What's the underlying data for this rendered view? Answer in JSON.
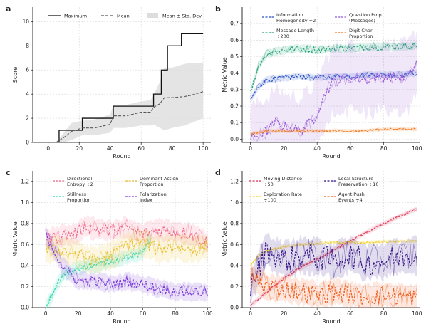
{
  "chart_data": [
    {
      "panel_label": "a",
      "type": "line",
      "xlabel": "Round",
      "ylabel": "Score",
      "xlim": [
        -10,
        105
      ],
      "ylim": [
        0,
        11.2
      ],
      "xticks": [
        0,
        20,
        40,
        60,
        80,
        100
      ],
      "yticks": [
        0,
        2,
        4,
        6,
        8,
        10
      ],
      "legend_position": "top",
      "series": [
        {
          "name": "Maximum",
          "style": "solid",
          "color": "#111111",
          "x": [
            5,
            7,
            7,
            22,
            22,
            42,
            42,
            68,
            68,
            73,
            73,
            77,
            77,
            86,
            86,
            100
          ],
          "y": [
            0,
            0,
            1,
            1,
            2,
            2,
            3,
            3,
            4,
            4,
            6,
            6,
            8,
            8,
            9,
            9
          ]
        },
        {
          "name": "Mean",
          "style": "dashed",
          "color": "#555555",
          "x": [
            5,
            10,
            15,
            22,
            30,
            40,
            42,
            50,
            60,
            66,
            68,
            72,
            75,
            80,
            88,
            92,
            100
          ],
          "y": [
            0,
            0.4,
            0.9,
            1.2,
            1.2,
            1.5,
            2.2,
            2.2,
            2.5,
            2.5,
            2.9,
            3.2,
            3.7,
            3.7,
            3.8,
            3.9,
            4.2
          ]
        },
        {
          "name": "Mean ± Std. Dev.",
          "style": "band",
          "color": "#dddddd",
          "x": [
            5,
            10,
            15,
            22,
            30,
            40,
            42,
            50,
            60,
            66,
            68,
            72,
            75,
            80,
            88,
            92,
            100
          ],
          "lower": [
            0,
            0,
            0.2,
            0.6,
            0.6,
            0.8,
            1.2,
            1.2,
            1.4,
            1.4,
            1.5,
            1.2,
            1.0,
            1.2,
            1.4,
            1.6,
            2.0
          ],
          "upper": [
            0,
            0.8,
            1.6,
            1.8,
            1.9,
            2.3,
            3.1,
            3.1,
            3.4,
            3.5,
            3.9,
            5.0,
            6.2,
            6.2,
            6.5,
            6.6,
            6.6
          ]
        }
      ]
    },
    {
      "panel_label": "b",
      "type": "line",
      "xlabel": "Round",
      "ylabel": "Metric Value",
      "xlim": [
        -5,
        102
      ],
      "ylim": [
        -0.02,
        0.8
      ],
      "xticks": [
        0,
        20,
        40,
        60,
        80,
        100
      ],
      "yticks": [
        0.0,
        0.1,
        0.2,
        0.3,
        0.4,
        0.5,
        0.6,
        0.7
      ],
      "legend_position": "top",
      "series": [
        {
          "name": "Information Homogeneity ÷2",
          "color": "#2550c8",
          "x": [
            0,
            5,
            10,
            20,
            30,
            40,
            50,
            60,
            70,
            80,
            90,
            100
          ],
          "y": [
            0.24,
            0.32,
            0.36,
            0.37,
            0.38,
            0.37,
            0.38,
            0.38,
            0.39,
            0.39,
            0.39,
            0.4
          ]
        },
        {
          "name": "Message Length ÷200",
          "color": "#2aa67a",
          "x": [
            0,
            5,
            10,
            20,
            30,
            40,
            50,
            60,
            70,
            80,
            90,
            100
          ],
          "y": [
            0.28,
            0.45,
            0.52,
            0.54,
            0.55,
            0.54,
            0.55,
            0.55,
            0.56,
            0.56,
            0.56,
            0.57
          ]
        },
        {
          "name": "Question Prop. (Messages)",
          "color": "#9a5cd8",
          "x": [
            0,
            10,
            15,
            20,
            30,
            38,
            45,
            50,
            60,
            70,
            80,
            90,
            95,
            100
          ],
          "y": [
            0.0,
            0.05,
            0.1,
            0.08,
            0.05,
            0.12,
            0.28,
            0.35,
            0.37,
            0.36,
            0.38,
            0.37,
            0.38,
            0.47
          ]
        },
        {
          "name": "Digit Char Proportion",
          "color": "#f07a20",
          "x": [
            0,
            10,
            20,
            30,
            40,
            50,
            60,
            70,
            80,
            90,
            100
          ],
          "y": [
            0.03,
            0.05,
            0.05,
            0.05,
            0.05,
            0.05,
            0.05,
            0.05,
            0.06,
            0.06,
            0.06
          ]
        }
      ]
    },
    {
      "panel_label": "c",
      "type": "line",
      "xlabel": "Round",
      "ylabel": "Metric Value",
      "xlim": [
        -8,
        102
      ],
      "ylim": [
        0,
        1.3
      ],
      "xticks": [
        0,
        20,
        40,
        60,
        80,
        100
      ],
      "yticks": [
        0.0,
        0.2,
        0.4,
        0.6,
        0.8,
        1.0,
        1.2
      ],
      "legend_position": "top",
      "series": [
        {
          "name": "Directional Entropy ÷2",
          "color": "#f06a8a",
          "x": [
            0,
            10,
            20,
            25,
            30,
            40,
            50,
            60,
            70,
            80,
            90,
            100
          ],
          "y": [
            0.65,
            0.68,
            0.72,
            0.78,
            0.75,
            0.73,
            0.76,
            0.7,
            0.74,
            0.72,
            0.7,
            0.62
          ]
        },
        {
          "name": "Stillness Proportion",
          "color": "#30d8b0",
          "x": [
            0,
            4,
            8,
            12,
            16,
            20,
            30,
            40,
            50,
            60,
            62,
            65
          ],
          "y": [
            0.0,
            0.12,
            0.25,
            0.32,
            0.35,
            0.38,
            0.4,
            0.44,
            0.48,
            0.52,
            0.6,
            0.65
          ]
        },
        {
          "name": "Dominant Action Proportion",
          "color": "#e8c030",
          "x": [
            0,
            10,
            20,
            30,
            40,
            50,
            60,
            70,
            80,
            90,
            100
          ],
          "y": [
            0.55,
            0.55,
            0.5,
            0.45,
            0.5,
            0.6,
            0.62,
            0.55,
            0.58,
            0.55,
            0.58
          ]
        },
        {
          "name": "Polarization Index",
          "color": "#7a3ad8",
          "x": [
            0,
            10,
            20,
            30,
            40,
            50,
            60,
            70,
            80,
            90,
            100
          ],
          "y": [
            0.7,
            0.4,
            0.25,
            0.25,
            0.22,
            0.25,
            0.22,
            0.18,
            0.15,
            0.15,
            0.15
          ]
        }
      ]
    },
    {
      "panel_label": "d",
      "type": "line",
      "xlabel": "Round",
      "ylabel": "Metric Value",
      "xlim": [
        -5,
        102
      ],
      "ylim": [
        0,
        1.3
      ],
      "xticks": [
        0,
        20,
        40,
        60,
        80,
        100
      ],
      "yticks": [
        0.0,
        0.2,
        0.4,
        0.6,
        0.8,
        1.0,
        1.2
      ],
      "legend_position": "top",
      "series": [
        {
          "name": "Moving Distance ÷50",
          "color": "#e03a5a",
          "x": [
            0,
            10,
            20,
            30,
            40,
            50,
            60,
            70,
            80,
            90,
            100
          ],
          "y": [
            0.02,
            0.15,
            0.28,
            0.38,
            0.46,
            0.55,
            0.63,
            0.72,
            0.8,
            0.87,
            0.94
          ]
        },
        {
          "name": "Exploration Rate ÷100",
          "color": "#f0d030",
          "x": [
            0,
            5,
            10,
            15,
            20,
            30,
            40,
            50,
            60,
            70,
            80,
            90,
            100
          ],
          "y": [
            0.4,
            0.5,
            0.54,
            0.56,
            0.58,
            0.6,
            0.61,
            0.62,
            0.62,
            0.62,
            0.63,
            0.63,
            0.63
          ]
        },
        {
          "name": "Local Structure Preservation ÷10",
          "color": "#3a1a8a",
          "x": [
            0,
            10,
            20,
            30,
            40,
            50,
            60,
            70,
            80,
            90,
            100
          ],
          "y": [
            0.2,
            0.55,
            0.45,
            0.5,
            0.48,
            0.45,
            0.5,
            0.42,
            0.45,
            0.48,
            0.5
          ]
        },
        {
          "name": "Agent Push Events ÷4",
          "color": "#f06020",
          "x": [
            0,
            10,
            20,
            30,
            40,
            50,
            60,
            70,
            80,
            90,
            100
          ],
          "y": [
            0.3,
            0.2,
            0.18,
            0.15,
            0.12,
            0.15,
            0.12,
            0.1,
            0.12,
            0.1,
            0.1
          ]
        }
      ]
    }
  ]
}
